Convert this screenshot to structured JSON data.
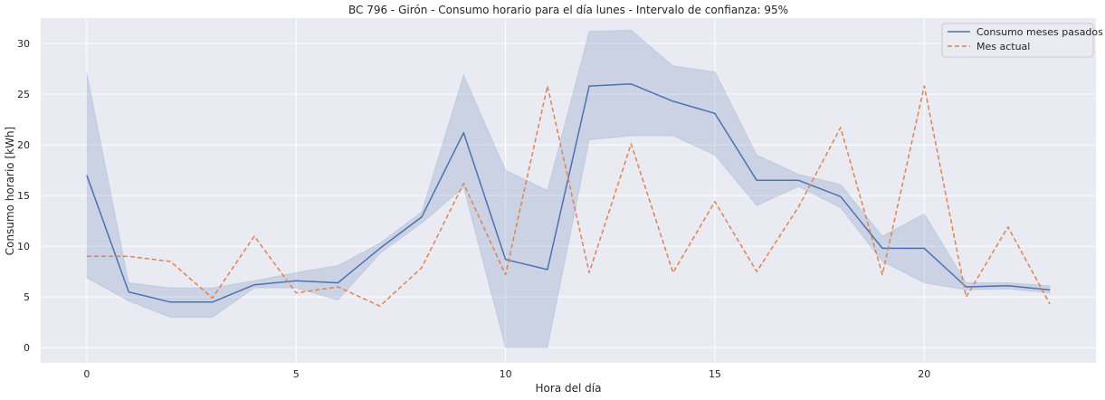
{
  "chart_data": {
    "type": "line",
    "title": "BC 796 - Girón - Consumo horario para el día lunes - Intervalo de confianza: 95%",
    "xlabel": "Hora del día",
    "ylabel": "Consumo horario [kWh]",
    "xlim": [
      -1.1,
      24.1
    ],
    "ylim": [
      -1.5,
      32.5
    ],
    "xticks": [
      0,
      5,
      10,
      15,
      20
    ],
    "yticks": [
      0,
      5,
      10,
      15,
      20,
      25,
      30
    ],
    "grid": true,
    "legend_position": "top-right",
    "x": [
      0,
      1,
      2,
      3,
      4,
      5,
      6,
      7,
      8,
      9,
      10,
      11,
      12,
      13,
      14,
      15,
      16,
      17,
      18,
      19,
      20,
      21,
      22,
      23
    ],
    "series": [
      {
        "name": "Consumo meses pasados",
        "style": "solid",
        "color": "#4c72b0",
        "values": [
          17.0,
          5.5,
          4.5,
          4.5,
          6.2,
          6.6,
          6.4,
          9.8,
          12.9,
          21.2,
          8.7,
          7.7,
          25.8,
          26.0,
          24.3,
          23.1,
          16.5,
          16.5,
          14.9,
          9.8,
          9.8,
          6.0,
          6.1,
          5.7
        ],
        "ci_lower": [
          6.9,
          4.6,
          3.0,
          3.0,
          5.9,
          5.9,
          4.7,
          9.3,
          12.3,
          15.8,
          0.0,
          0.0,
          20.5,
          20.9,
          20.9,
          19.0,
          14.0,
          15.9,
          13.8,
          8.5,
          6.4,
          5.7,
          5.8,
          5.4
        ],
        "ci_upper": [
          27.1,
          6.4,
          5.9,
          5.9,
          6.6,
          7.4,
          8.1,
          10.3,
          13.4,
          26.9,
          17.5,
          15.5,
          31.2,
          31.3,
          27.8,
          27.2,
          19.0,
          17.1,
          16.1,
          11.0,
          13.2,
          6.4,
          6.4,
          6.1
        ],
        "ci_color": "#4c72b0"
      },
      {
        "name": "Mes actual",
        "style": "dashed",
        "color": "#dd8452",
        "values": [
          9.0,
          9.0,
          8.5,
          4.9,
          11.0,
          5.4,
          6.0,
          4.1,
          7.9,
          16.2,
          7.2,
          25.8,
          7.4,
          20.1,
          7.4,
          14.4,
          7.5,
          13.9,
          21.7,
          7.2,
          25.8,
          5.0,
          11.9,
          4.3
        ]
      }
    ]
  },
  "colors": {
    "plot_background": "#eaeaf2",
    "grid": "#ffffff",
    "text": "#262626"
  }
}
